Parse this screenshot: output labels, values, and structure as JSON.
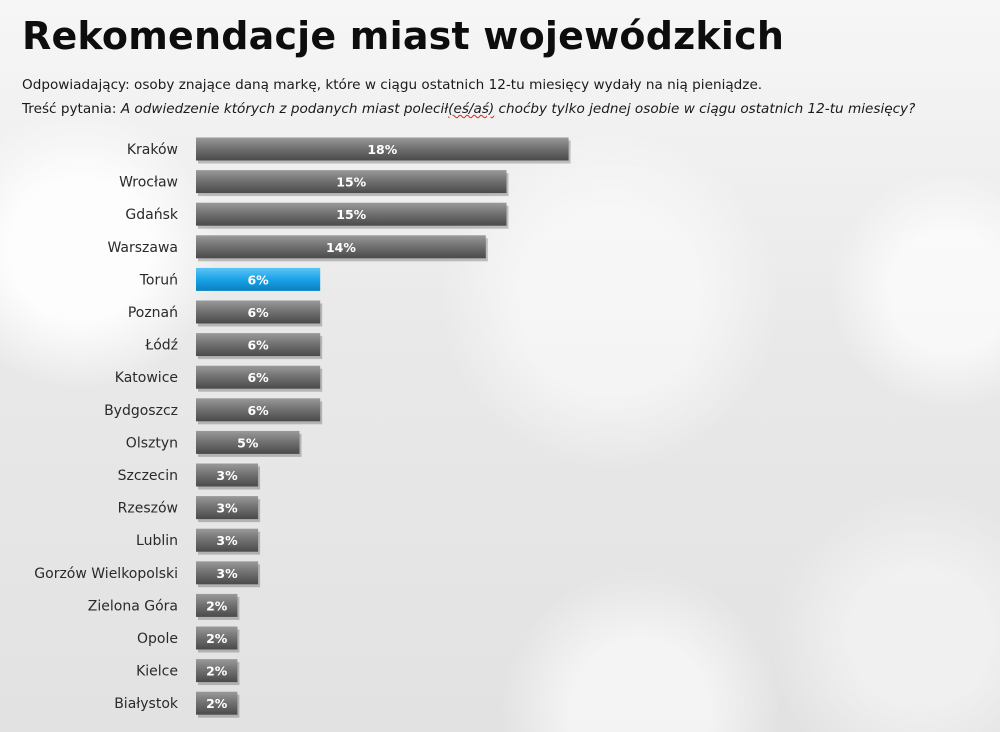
{
  "title": "Rekomendacje miast wojewódzkich",
  "respondents_label": "Odpowiadający:",
  "respondents_text": "osoby znające daną markę, które w ciągu ostatnich 12-tu miesięcy wydały na nią pieniądze.",
  "question_label": "Treść pytania:",
  "question_text_a": "A odwiedzenie których z podanych miast polecił",
  "question_text_spell": "(eś/aś)",
  "question_text_b": " choćby tylko jednej osobie w ciągu ostatnich 12-tu miesięcy?",
  "colors": {
    "bar": "#6e6e6e",
    "highlight": "#1aa3e8",
    "label": "#ffffff"
  },
  "chart_data": {
    "type": "bar",
    "orientation": "horizontal",
    "categories": [
      "Kraków",
      "Wrocław",
      "Gdańsk",
      "Warszawa",
      "Toruń",
      "Poznań",
      "Łódź",
      "Katowice",
      "Bydgoszcz",
      "Olsztyn",
      "Szczecin",
      "Rzeszów",
      "Lublin",
      "Gorzów Wielkopolski",
      "Zielona Góra",
      "Opole",
      "Kielce",
      "Białystok"
    ],
    "values": [
      18,
      15,
      15,
      14,
      6,
      6,
      6,
      6,
      6,
      5,
      3,
      3,
      3,
      3,
      2,
      2,
      2,
      2
    ],
    "labels": [
      "18%",
      "15%",
      "15%",
      "14%",
      "6%",
      "6%",
      "6%",
      "6%",
      "6%",
      "5%",
      "3%",
      "3%",
      "3%",
      "3%",
      "2%",
      "2%",
      "2%",
      "2%"
    ],
    "highlight": "Toruń",
    "unit": "%",
    "grid": false,
    "legend": "none"
  }
}
